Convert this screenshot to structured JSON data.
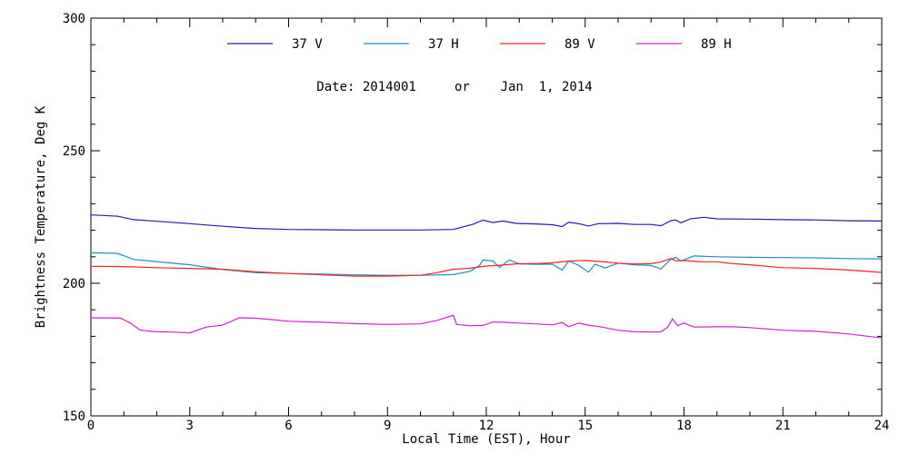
{
  "chart_data": {
    "type": "line",
    "title": "",
    "subtitle": "Date: 2014001     or    Jan  1, 2014",
    "xlabel": "Local Time (EST), Hour",
    "ylabel": "Brightness Temperature, Deg K",
    "xlim": [
      0,
      24
    ],
    "ylim": [
      150,
      300
    ],
    "xticks": [
      0,
      3,
      6,
      9,
      12,
      15,
      18,
      21,
      24
    ],
    "yticks": [
      150,
      200,
      250,
      300
    ],
    "grid": false,
    "legend_position": "top",
    "series": [
      {
        "name": "37 V",
        "color": "#1f1fb4",
        "points": [
          [
            0,
            225.8
          ],
          [
            0.8,
            225.3
          ],
          [
            1.3,
            224
          ],
          [
            2,
            223.4
          ],
          [
            3,
            222.5
          ],
          [
            4,
            221.5
          ],
          [
            5,
            220.7
          ],
          [
            6,
            220.3
          ],
          [
            7,
            220.2
          ],
          [
            8,
            220.1
          ],
          [
            9,
            220.1
          ],
          [
            10,
            220.1
          ],
          [
            11,
            220.3
          ],
          [
            11.6,
            222.3
          ],
          [
            11.9,
            223.8
          ],
          [
            12.2,
            222.9
          ],
          [
            12.5,
            223.5
          ],
          [
            12.9,
            222.6
          ],
          [
            13.5,
            222.4
          ],
          [
            14,
            222.1
          ],
          [
            14.3,
            221.4
          ],
          [
            14.5,
            223
          ],
          [
            14.8,
            222.5
          ],
          [
            15.1,
            221.6
          ],
          [
            15.4,
            222.5
          ],
          [
            16,
            222.6
          ],
          [
            16.5,
            222.2
          ],
          [
            17,
            222.2
          ],
          [
            17.3,
            221.7
          ],
          [
            17.6,
            223.6
          ],
          [
            17.75,
            223.9
          ],
          [
            17.9,
            222.8
          ],
          [
            18.2,
            224.3
          ],
          [
            18.6,
            224.9
          ],
          [
            19,
            224.3
          ],
          [
            20,
            224.2
          ],
          [
            21,
            224
          ],
          [
            22,
            223.9
          ],
          [
            23,
            223.6
          ],
          [
            24,
            223.5
          ]
        ]
      },
      {
        "name": "37 H",
        "color": "#1a8ed3",
        "points": [
          [
            0,
            211.5
          ],
          [
            0.8,
            211.3
          ],
          [
            1.3,
            209
          ],
          [
            2,
            208.2
          ],
          [
            3,
            207
          ],
          [
            4,
            205.2
          ],
          [
            5,
            204
          ],
          [
            6,
            203.7
          ],
          [
            7,
            203.5
          ],
          [
            8,
            203.2
          ],
          [
            9,
            203
          ],
          [
            10,
            203
          ],
          [
            11,
            203.3
          ],
          [
            11.5,
            204.5
          ],
          [
            11.8,
            206.8
          ],
          [
            11.9,
            208.8
          ],
          [
            12.2,
            208.4
          ],
          [
            12.4,
            206
          ],
          [
            12.7,
            208.8
          ],
          [
            13,
            207.3
          ],
          [
            13.5,
            207.2
          ],
          [
            14,
            207.2
          ],
          [
            14.3,
            205
          ],
          [
            14.5,
            208.4
          ],
          [
            14.8,
            206.8
          ],
          [
            15.1,
            204.2
          ],
          [
            15.3,
            207.2
          ],
          [
            15.6,
            205.8
          ],
          [
            16,
            207.6
          ],
          [
            16.5,
            207
          ],
          [
            17,
            206.7
          ],
          [
            17.3,
            205.4
          ],
          [
            17.6,
            209
          ],
          [
            17.75,
            209.8
          ],
          [
            17.9,
            208.4
          ],
          [
            18.3,
            210.3
          ],
          [
            19,
            210
          ],
          [
            20,
            209.8
          ],
          [
            21,
            209.7
          ],
          [
            22,
            209.6
          ],
          [
            23,
            209.3
          ],
          [
            24,
            209.2
          ]
        ]
      },
      {
        "name": "89 V",
        "color": "#ff2020",
        "points": [
          [
            0,
            206.4
          ],
          [
            1,
            206.3
          ],
          [
            2,
            205.9
          ],
          [
            3,
            205.6
          ],
          [
            4,
            205.3
          ],
          [
            5,
            204.3
          ],
          [
            6,
            203.7
          ],
          [
            7,
            203.2
          ],
          [
            8,
            202.7
          ],
          [
            9,
            202.7
          ],
          [
            10,
            203
          ],
          [
            10.5,
            204
          ],
          [
            11,
            205.3
          ],
          [
            11.5,
            205.7
          ],
          [
            12,
            206.5
          ],
          [
            12.5,
            206.9
          ],
          [
            13,
            207.4
          ],
          [
            13.5,
            207.4
          ],
          [
            14,
            207.7
          ],
          [
            14.5,
            208.4
          ],
          [
            15,
            208.6
          ],
          [
            15.5,
            208.2
          ],
          [
            16,
            207.6
          ],
          [
            16.5,
            207.3
          ],
          [
            17,
            207.4
          ],
          [
            17.3,
            208
          ],
          [
            17.6,
            209.3
          ],
          [
            17.75,
            208.5
          ],
          [
            18,
            208.6
          ],
          [
            18.5,
            208.1
          ],
          [
            19,
            208.1
          ],
          [
            19.5,
            207.4
          ],
          [
            20,
            207
          ],
          [
            21,
            205.9
          ],
          [
            22,
            205.6
          ],
          [
            23,
            205
          ],
          [
            24,
            204.1
          ]
        ]
      },
      {
        "name": "89 H",
        "color": "#d020d0",
        "points": [
          [
            0,
            187
          ],
          [
            0.9,
            186.9
          ],
          [
            1.2,
            185
          ],
          [
            1.5,
            182.3
          ],
          [
            2,
            181.7
          ],
          [
            2.5,
            181.6
          ],
          [
            3,
            181.3
          ],
          [
            3.2,
            182.2
          ],
          [
            3.5,
            183.5
          ],
          [
            4,
            184.2
          ],
          [
            4.5,
            187
          ],
          [
            5,
            186.8
          ],
          [
            5.5,
            186.3
          ],
          [
            6,
            185.7
          ],
          [
            7,
            185.3
          ],
          [
            8,
            184.8
          ],
          [
            9,
            184.5
          ],
          [
            10,
            184.7
          ],
          [
            10.5,
            186
          ],
          [
            11,
            187.9
          ],
          [
            11.1,
            184.5
          ],
          [
            11.5,
            184
          ],
          [
            11.9,
            184.1
          ],
          [
            12.2,
            185.4
          ],
          [
            12.5,
            185.3
          ],
          [
            13,
            185
          ],
          [
            13.5,
            184.7
          ],
          [
            14,
            184.3
          ],
          [
            14.3,
            185.2
          ],
          [
            14.5,
            183.6
          ],
          [
            14.8,
            185
          ],
          [
            15.1,
            184.2
          ],
          [
            15.5,
            183.5
          ],
          [
            16,
            182.3
          ],
          [
            16.5,
            181.7
          ],
          [
            17,
            181.6
          ],
          [
            17.3,
            181.7
          ],
          [
            17.5,
            183.4
          ],
          [
            17.65,
            186.6
          ],
          [
            17.8,
            184
          ],
          [
            18,
            185
          ],
          [
            18.3,
            183.5
          ],
          [
            19,
            183.6
          ],
          [
            19.5,
            183.6
          ],
          [
            20,
            183.3
          ],
          [
            21,
            182.3
          ],
          [
            22,
            181.9
          ],
          [
            23,
            180.9
          ],
          [
            24,
            179.4
          ]
        ]
      }
    ]
  }
}
